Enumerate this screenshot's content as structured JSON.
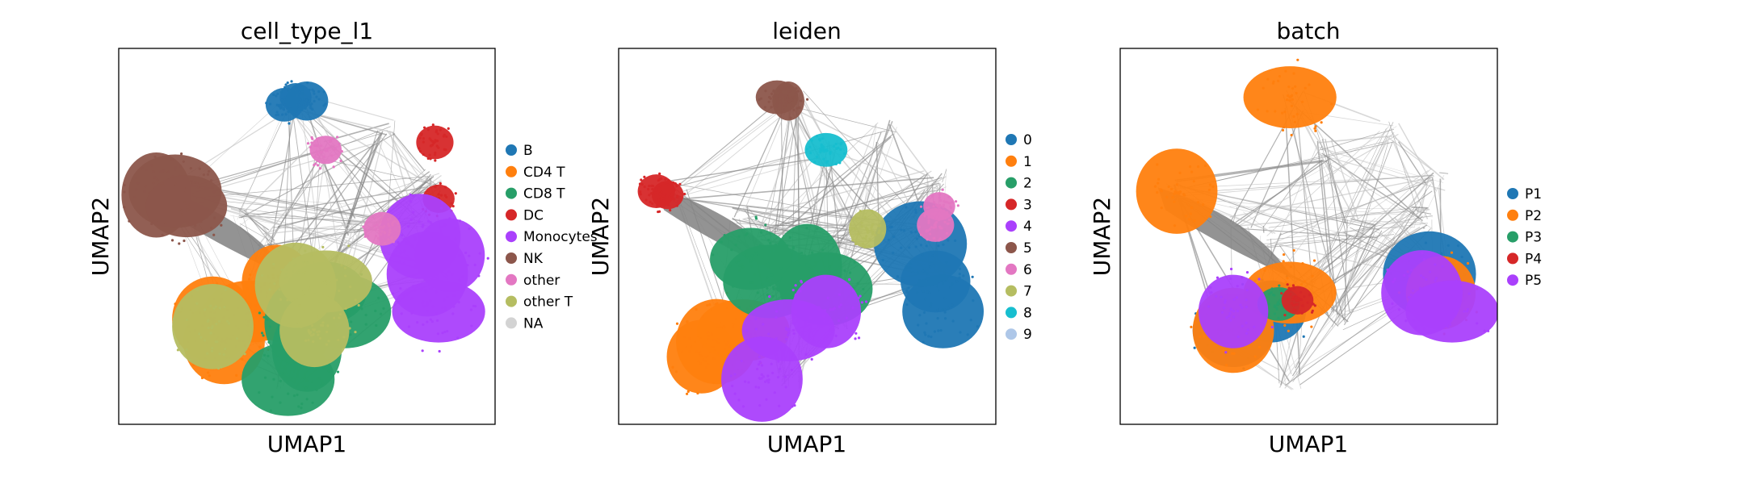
{
  "chart_data": [
    {
      "type": "scatter",
      "title": "cell_type_l1",
      "xlabel": "UMAP1",
      "ylabel": "UMAP2",
      "legend_position": "right",
      "series": [
        {
          "name": "B",
          "color": "#1f77b4",
          "points": [
            [
              0.47,
              0.87
            ],
            [
              0.44,
              0.85
            ],
            [
              0.5,
              0.86
            ]
          ]
        },
        {
          "name": "CD4 T",
          "color": "#ff7f0e",
          "points": [
            [
              0.28,
              0.22
            ],
            [
              0.35,
              0.3
            ],
            [
              0.42,
              0.38
            ],
            [
              0.25,
              0.28
            ],
            [
              0.45,
              0.3
            ]
          ]
        },
        {
          "name": "CD8 T",
          "color": "#279e68",
          "points": [
            [
              0.45,
              0.12
            ],
            [
              0.5,
              0.2
            ],
            [
              0.55,
              0.35
            ],
            [
              0.6,
              0.3
            ],
            [
              0.48,
              0.27
            ]
          ]
        },
        {
          "name": "DC",
          "color": "#d62728",
          "points": [
            [
              0.85,
              0.6
            ],
            [
              0.84,
              0.75
            ]
          ]
        },
        {
          "name": "Monocytes",
          "color": "#aa40fc",
          "points": [
            [
              0.82,
              0.4
            ],
            [
              0.85,
              0.3
            ],
            [
              0.88,
              0.45
            ],
            [
              0.8,
              0.5
            ]
          ]
        },
        {
          "name": "NK",
          "color": "#8c564b",
          "points": [
            [
              0.15,
              0.62
            ],
            [
              0.1,
              0.61
            ],
            [
              0.18,
              0.58
            ]
          ]
        },
        {
          "name": "other",
          "color": "#e377c2",
          "points": [
            [
              0.55,
              0.73
            ],
            [
              0.7,
              0.52
            ]
          ]
        },
        {
          "name": "other T",
          "color": "#b5bd61",
          "points": [
            [
              0.47,
              0.37
            ],
            [
              0.55,
              0.38
            ],
            [
              0.52,
              0.25
            ],
            [
              0.25,
              0.26
            ]
          ]
        },
        {
          "name": "NA",
          "color": "#d3d3d3",
          "points": []
        }
      ]
    },
    {
      "type": "scatter",
      "title": "leiden",
      "xlabel": "UMAP1",
      "ylabel": "UMAP2",
      "legend_position": "right",
      "series": [
        {
          "name": "0",
          "color": "#1f77b4",
          "points": [
            [
              0.84,
              0.38
            ],
            [
              0.86,
              0.3
            ],
            [
              0.8,
              0.48
            ]
          ]
        },
        {
          "name": "1",
          "color": "#ff7f0e",
          "points": [
            [
              0.26,
              0.22
            ],
            [
              0.33,
              0.25
            ],
            [
              0.22,
              0.18
            ]
          ]
        },
        {
          "name": "2",
          "color": "#279e68",
          "points": [
            [
              0.4,
              0.38
            ],
            [
              0.5,
              0.42
            ],
            [
              0.35,
              0.44
            ],
            [
              0.55,
              0.36
            ]
          ]
        },
        {
          "name": "3",
          "color": "#d62728",
          "points": [
            [
              0.13,
              0.61
            ],
            [
              0.1,
              0.62
            ]
          ]
        },
        {
          "name": "4",
          "color": "#aa40fc",
          "points": [
            [
              0.38,
              0.12
            ],
            [
              0.45,
              0.25
            ],
            [
              0.55,
              0.3
            ]
          ]
        },
        {
          "name": "5",
          "color": "#8c564b",
          "points": [
            [
              0.42,
              0.87
            ],
            [
              0.45,
              0.86
            ]
          ]
        },
        {
          "name": "6",
          "color": "#e377c2",
          "points": [
            [
              0.85,
              0.58
            ],
            [
              0.84,
              0.53
            ]
          ]
        },
        {
          "name": "7",
          "color": "#b5bd61",
          "points": [
            [
              0.66,
              0.52
            ]
          ]
        },
        {
          "name": "8",
          "color": "#17becf",
          "points": [
            [
              0.55,
              0.73
            ]
          ]
        },
        {
          "name": "9",
          "color": "#aec7e8",
          "points": []
        }
      ]
    },
    {
      "type": "scatter",
      "title": "batch",
      "xlabel": "UMAP1",
      "ylabel": "UMAP2",
      "legend_position": "right",
      "series": [
        {
          "name": "P1",
          "color": "#1f77b4",
          "points": [
            [
              0.4,
              0.3
            ],
            [
              0.3,
              0.25
            ],
            [
              0.82,
              0.4
            ]
          ]
        },
        {
          "name": "P2",
          "color": "#ff7f0e",
          "points": [
            [
              0.3,
              0.25
            ],
            [
              0.45,
              0.35
            ],
            [
              0.85,
              0.35
            ],
            [
              0.15,
              0.62
            ],
            [
              0.45,
              0.87
            ]
          ]
        },
        {
          "name": "P3",
          "color": "#279e68",
          "points": [
            [
              0.42,
              0.32
            ]
          ]
        },
        {
          "name": "P4",
          "color": "#d62728",
          "points": [
            [
              0.47,
              0.33
            ]
          ]
        },
        {
          "name": "P5",
          "color": "#aa40fc",
          "points": [
            [
              0.8,
              0.35
            ],
            [
              0.88,
              0.3
            ],
            [
              0.3,
              0.3
            ]
          ]
        }
      ]
    }
  ]
}
